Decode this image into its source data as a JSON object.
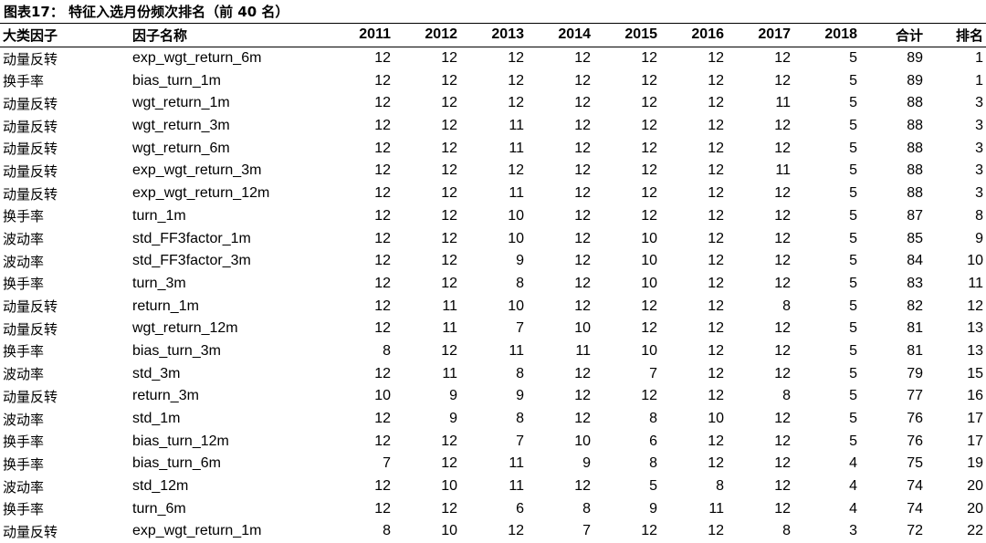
{
  "title": "图表17：  特征入选月份频次排名（前 40 名）",
  "columns": [
    "大类因子",
    "因子名称",
    "2011",
    "2012",
    "2013",
    "2014",
    "2015",
    "2016",
    "2017",
    "2018",
    "合计",
    "排名"
  ],
  "rows": [
    [
      "动量反转",
      "exp_wgt_return_6m",
      "12",
      "12",
      "12",
      "12",
      "12",
      "12",
      "12",
      "5",
      "89",
      "1"
    ],
    [
      "换手率",
      "bias_turn_1m",
      "12",
      "12",
      "12",
      "12",
      "12",
      "12",
      "12",
      "5",
      "89",
      "1"
    ],
    [
      "动量反转",
      "wgt_return_1m",
      "12",
      "12",
      "12",
      "12",
      "12",
      "12",
      "11",
      "5",
      "88",
      "3"
    ],
    [
      "动量反转",
      "wgt_return_3m",
      "12",
      "12",
      "11",
      "12",
      "12",
      "12",
      "12",
      "5",
      "88",
      "3"
    ],
    [
      "动量反转",
      "wgt_return_6m",
      "12",
      "12",
      "11",
      "12",
      "12",
      "12",
      "12",
      "5",
      "88",
      "3"
    ],
    [
      "动量反转",
      "exp_wgt_return_3m",
      "12",
      "12",
      "12",
      "12",
      "12",
      "12",
      "11",
      "5",
      "88",
      "3"
    ],
    [
      "动量反转",
      "exp_wgt_return_12m",
      "12",
      "12",
      "11",
      "12",
      "12",
      "12",
      "12",
      "5",
      "88",
      "3"
    ],
    [
      "换手率",
      "turn_1m",
      "12",
      "12",
      "10",
      "12",
      "12",
      "12",
      "12",
      "5",
      "87",
      "8"
    ],
    [
      "波动率",
      "std_FF3factor_1m",
      "12",
      "12",
      "10",
      "12",
      "10",
      "12",
      "12",
      "5",
      "85",
      "9"
    ],
    [
      "波动率",
      "std_FF3factor_3m",
      "12",
      "12",
      "9",
      "12",
      "10",
      "12",
      "12",
      "5",
      "84",
      "10"
    ],
    [
      "换手率",
      "turn_3m",
      "12",
      "12",
      "8",
      "12",
      "10",
      "12",
      "12",
      "5",
      "83",
      "11"
    ],
    [
      "动量反转",
      "return_1m",
      "12",
      "11",
      "10",
      "12",
      "12",
      "12",
      "8",
      "5",
      "82",
      "12"
    ],
    [
      "动量反转",
      "wgt_return_12m",
      "12",
      "11",
      "7",
      "10",
      "12",
      "12",
      "12",
      "5",
      "81",
      "13"
    ],
    [
      "换手率",
      "bias_turn_3m",
      "8",
      "12",
      "11",
      "11",
      "10",
      "12",
      "12",
      "5",
      "81",
      "13"
    ],
    [
      "波动率",
      "std_3m",
      "12",
      "11",
      "8",
      "12",
      "7",
      "12",
      "12",
      "5",
      "79",
      "15"
    ],
    [
      "动量反转",
      "return_3m",
      "10",
      "9",
      "9",
      "12",
      "12",
      "12",
      "8",
      "5",
      "77",
      "16"
    ],
    [
      "波动率",
      "std_1m",
      "12",
      "9",
      "8",
      "12",
      "8",
      "10",
      "12",
      "5",
      "76",
      "17"
    ],
    [
      "换手率",
      "bias_turn_12m",
      "12",
      "12",
      "7",
      "10",
      "6",
      "12",
      "12",
      "5",
      "76",
      "17"
    ],
    [
      "换手率",
      "bias_turn_6m",
      "7",
      "12",
      "11",
      "9",
      "8",
      "12",
      "12",
      "4",
      "75",
      "19"
    ],
    [
      "波动率",
      "std_12m",
      "12",
      "10",
      "11",
      "12",
      "5",
      "8",
      "12",
      "4",
      "74",
      "20"
    ],
    [
      "换手率",
      "turn_6m",
      "12",
      "12",
      "6",
      "8",
      "9",
      "11",
      "12",
      "4",
      "74",
      "20"
    ],
    [
      "动量反转",
      "exp_wgt_return_1m",
      "8",
      "10",
      "12",
      "7",
      "12",
      "12",
      "8",
      "3",
      "72",
      "22"
    ]
  ]
}
